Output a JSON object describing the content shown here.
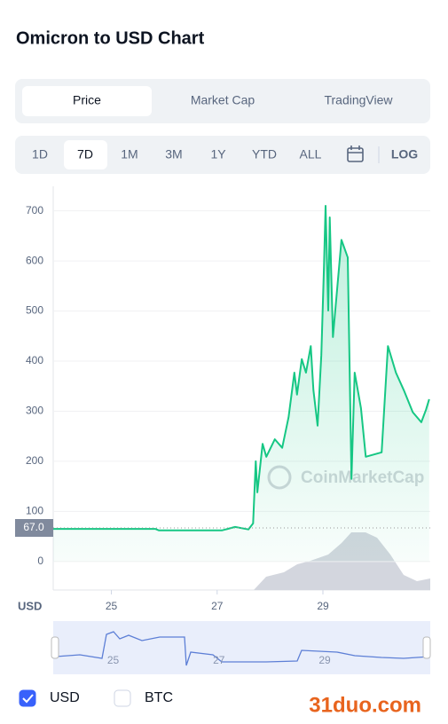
{
  "title": "Omicron to USD Chart",
  "tabs": [
    "Price",
    "Market Cap",
    "TradingView"
  ],
  "active_tab": 0,
  "ranges": [
    "1D",
    "7D",
    "1M",
    "3M",
    "1Y",
    "YTD",
    "ALL"
  ],
  "active_range": 1,
  "log_button": "LOG",
  "chart_data": {
    "type": "line",
    "color": "#16c784",
    "x": [
      23.9,
      25.83,
      25.9,
      27.09,
      27.34,
      27.59,
      27.68,
      27.73,
      27.76,
      27.86,
      27.93,
      28.09,
      28.23,
      28.35,
      28.46,
      28.51,
      28.6,
      28.68,
      28.77,
      28.82,
      28.9,
      28.97,
      29.02,
      29.05,
      29.1,
      29.13,
      29.19,
      29.35,
      29.47,
      29.54,
      29.6,
      29.72,
      29.81,
      30.11,
      30.23,
      30.38,
      30.53,
      30.7,
      30.86,
      30.95,
      31.01
    ],
    "values": [
      65,
      65,
      62,
      62,
      69,
      64,
      76,
      200,
      138,
      235,
      209,
      244,
      227,
      288,
      377,
      333,
      404,
      377,
      430,
      342,
      271,
      412,
      589,
      710,
      501,
      687,
      448,
      642,
      607,
      165,
      377,
      306,
      209,
      218,
      430,
      377,
      342,
      298,
      278,
      303,
      324
    ],
    "xlim": [
      23.9,
      31.03
    ],
    "xticks": [
      25,
      27,
      29
    ],
    "ylim": [
      -57,
      749
    ],
    "yticks": [
      0,
      100,
      200,
      300,
      400,
      500,
      600,
      700
    ],
    "grid": true,
    "price_marker": {
      "value": 67,
      "label": "67.0"
    },
    "currency_label": "USD",
    "watermark": "CoinMarketCap"
  },
  "checkboxes": [
    {
      "label": "USD",
      "checked": true
    },
    {
      "label": "BTC",
      "checked": false
    }
  ],
  "watermark": "31duo.com"
}
